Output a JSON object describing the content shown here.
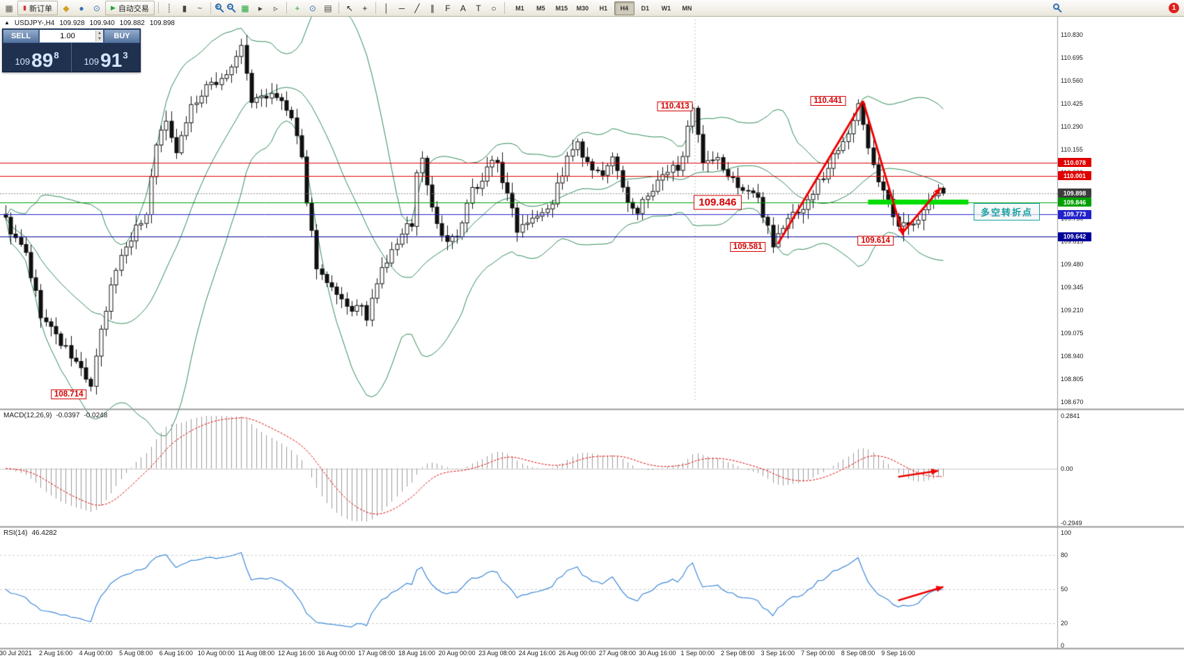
{
  "toolbar": {
    "new_order": "新订单",
    "auto_trading": "自动交易",
    "notification_count": "1",
    "timeframes": [
      "M1",
      "M5",
      "M15",
      "M30",
      "H1",
      "H4",
      "D1",
      "W1",
      "MN"
    ],
    "active_timeframe": "H4",
    "items": [
      {
        "t": "icon",
        "name": "new-chart-icon",
        "g": "▦",
        "c": "#5a5a5a"
      },
      {
        "t": "btn",
        "name": "new-order-button",
        "g": "▮",
        "gc": "#cc3333",
        "label_key": "new_order"
      },
      {
        "t": "icon",
        "name": "diamond-icon",
        "g": "◆",
        "c": "#d0a020"
      },
      {
        "t": "icon",
        "name": "profiles-icon",
        "g": "●",
        "c": "#3b6fb5"
      },
      {
        "t": "icon",
        "name": "history-center-icon",
        "g": "⊙",
        "c": "#3b6fb5"
      },
      {
        "t": "btn",
        "name": "auto-trading-button",
        "g": "▶",
        "gc": "#1fa53a",
        "label_key": "auto_trading"
      },
      {
        "t": "sep"
      },
      {
        "t": "icon",
        "name": "bar-chart-icon",
        "g": "┊",
        "c": "#444"
      },
      {
        "t": "icon",
        "name": "candlestick-chart-icon",
        "g": "▮",
        "c": "#444"
      },
      {
        "t": "icon",
        "name": "line-chart-icon",
        "g": "~",
        "c": "#444"
      },
      {
        "t": "sep"
      },
      {
        "t": "lens",
        "name": "zoom-in-icon",
        "sign": "+"
      },
      {
        "t": "lens",
        "name": "zoom-out-icon",
        "sign": "−"
      },
      {
        "t": "icon",
        "name": "grid-icon",
        "g": "▦",
        "c": "#1fa53a"
      },
      {
        "t": "icon",
        "name": "auto-scroll-icon",
        "g": "▸",
        "c": "#444"
      },
      {
        "t": "icon",
        "name": "chart-shift-icon",
        "g": "▹",
        "c": "#444"
      },
      {
        "t": "sep"
      },
      {
        "t": "icon",
        "name": "indicators-icon",
        "g": "+",
        "c": "#1fa53a"
      },
      {
        "t": "icon",
        "name": "periods-icon",
        "g": "⊙",
        "c": "#3b6fb5"
      },
      {
        "t": "icon",
        "name": "templates-icon",
        "g": "▤",
        "c": "#444"
      },
      {
        "t": "sep"
      },
      {
        "t": "icon",
        "name": "cursor-icon",
        "g": "↖",
        "c": "#222"
      },
      {
        "t": "icon",
        "name": "crosshair-icon",
        "g": "+",
        "c": "#222"
      },
      {
        "t": "sep"
      },
      {
        "t": "icon",
        "name": "vertical-line-icon",
        "g": "│",
        "c": "#222"
      },
      {
        "t": "icon",
        "name": "horizontal-line-icon",
        "g": "─",
        "c": "#222"
      },
      {
        "t": "icon",
        "name": "trendline-icon",
        "g": "╱",
        "c": "#222"
      },
      {
        "t": "icon",
        "name": "channel-icon",
        "g": "∥",
        "c": "#222"
      },
      {
        "t": "icon",
        "name": "fibonacci-icon",
        "g": "F",
        "c": "#222"
      },
      {
        "t": "icon",
        "name": "text-icon",
        "g": "A",
        "c": "#222"
      },
      {
        "t": "icon",
        "name": "label-icon",
        "g": "T",
        "c": "#222"
      },
      {
        "t": "icon",
        "name": "shapes-icon",
        "g": "○",
        "c": "#222"
      },
      {
        "t": "sep"
      },
      {
        "t": "tf"
      },
      {
        "t": "spacer"
      },
      {
        "t": "lens",
        "name": "search-icon",
        "sign": "",
        "cls": "srch"
      },
      {
        "t": "badge",
        "name": "notification-badge",
        "count_key": "notification_count"
      }
    ]
  },
  "symbol_info": {
    "marker": "▲",
    "symbol": "USDJPY-,H4",
    "open": "109.928",
    "high": "109.940",
    "low": "109.882",
    "close": "109.898"
  },
  "trade_panel": {
    "sell_label": "SELL",
    "buy_label": "BUY",
    "volume": "1.00",
    "sell": {
      "prefix": "109",
      "big": "89",
      "sup": "8"
    },
    "buy": {
      "prefix": "109",
      "big": "91",
      "sup": "3"
    }
  },
  "price_axis": {
    "labels": [
      "110.830",
      "110.695",
      "110.560",
      "110.425",
      "110.290",
      "110.155",
      "110.020",
      "109.885",
      "109.750",
      "109.615",
      "109.480",
      "109.345",
      "109.210",
      "109.075",
      "108.940",
      "108.805",
      "108.670"
    ],
    "tags": [
      {
        "text": "110.078",
        "color": "#e00000"
      },
      {
        "text": "110.001",
        "color": "#e00000"
      },
      {
        "text": "109.898",
        "color": "#3c3c3c"
      },
      {
        "text": "109.846",
        "color": "#00a000"
      },
      {
        "text": "109.773",
        "color": "#2222cc"
      },
      {
        "text": "109.642",
        "color": "#000099"
      }
    ]
  },
  "macd": {
    "title": "MACD(12,26,9)",
    "main_value": "-0.0397",
    "signal_value": "-0.0248",
    "axis": [
      "0.2841",
      "0.00",
      "-0.2949"
    ]
  },
  "rsi": {
    "title": "RSI(14)",
    "value": "46.4282",
    "axis": [
      "100",
      "80",
      "50",
      "20",
      "0"
    ]
  },
  "time_axis": [
    "30 Jul 2021",
    "2 Aug 16:00",
    "4 Aug 00:00",
    "5 Aug 08:00",
    "6 Aug 16:00",
    "10 Aug 00:00",
    "11 Aug 08:00",
    "12 Aug 16:00",
    "16 Aug 00:00",
    "17 Aug 08:00",
    "18 Aug 16:00",
    "20 Aug 00:00",
    "23 Aug 08:00",
    "24 Aug 16:00",
    "26 Aug 00:00",
    "27 Aug 08:00",
    "30 Aug 16:00",
    "1 Sep 00:00",
    "2 Sep 08:00",
    "3 Sep 16:00",
    "7 Sep 00:00",
    "8 Sep 08:00",
    "9 Sep 16:00"
  ],
  "annotations": {
    "labels": [
      {
        "text": "108.714",
        "bar": 12.6,
        "price": 108.716
      },
      {
        "text": "110.413",
        "bar": 133.5,
        "price": 110.41
      },
      {
        "text": "110.441",
        "bar": 164,
        "price": 110.44
      },
      {
        "text": "109.846",
        "bar": 142,
        "price": 109.845,
        "big": true
      },
      {
        "text": "109.581",
        "bar": 148,
        "price": 109.581
      },
      {
        "text": "109.614",
        "bar": 173.5,
        "price": 109.62
      }
    ],
    "turning_point": {
      "text": "多空转折点",
      "price": 109.79
    },
    "support_band": {
      "price": 109.846,
      "from_bar": 172,
      "to_bar": 192,
      "color": "#00dd00"
    },
    "arrows": [
      {
        "panel": "main",
        "pts": [
          [
            154,
            109.6
          ],
          [
            171,
            110.44
          ]
        ],
        "head": false
      },
      {
        "panel": "main",
        "pts": [
          [
            171,
            110.44
          ],
          [
            179,
            109.65
          ]
        ],
        "head": true
      },
      {
        "panel": "main",
        "pts": [
          [
            179,
            109.67
          ],
          [
            186.5,
            109.93
          ]
        ],
        "head": true
      },
      {
        "panel": "macd",
        "pts": [
          [
            178,
            -0.045
          ],
          [
            186,
            -0.012
          ]
        ],
        "head": true
      },
      {
        "panel": "rsi",
        "pts": [
          [
            178,
            40
          ],
          [
            187,
            52
          ]
        ],
        "head": true
      }
    ]
  },
  "chart_data": {
    "type": "candlestick",
    "symbol": "USDJPY-",
    "timeframe": "H4",
    "bars": 188,
    "price_range": [
      108.67,
      110.83
    ],
    "ohlc_current": {
      "open": 109.928,
      "high": 109.94,
      "low": 109.882,
      "close": 109.898
    },
    "levels": [
      {
        "price": 110.078,
        "color": "#e00000"
      },
      {
        "price": 110.001,
        "color": "#e00000"
      },
      {
        "price": 109.846,
        "color": "#00a000"
      },
      {
        "price": 109.773,
        "color": "#2222cc"
      },
      {
        "price": 109.642,
        "color": "#000099"
      }
    ],
    "key_points": [
      {
        "label": "swing-low",
        "price": 108.714
      },
      {
        "label": "swing-high",
        "price": 110.413
      },
      {
        "label": "swing-low",
        "price": 109.581
      },
      {
        "label": "swing-high",
        "price": 110.441
      },
      {
        "label": "swing-low",
        "price": 109.614
      },
      {
        "label": "support-turning-point",
        "price": 109.846
      }
    ],
    "waypoints": [
      [
        0,
        109.8
      ],
      [
        3,
        109.62
      ],
      [
        5,
        109.52
      ],
      [
        8,
        109.18
      ],
      [
        13,
        108.97
      ],
      [
        16,
        108.85
      ],
      [
        18,
        108.76
      ],
      [
        20,
        109.05
      ],
      [
        23,
        109.45
      ],
      [
        26,
        109.66
      ],
      [
        29,
        109.78
      ],
      [
        31,
        110.22
      ],
      [
        33,
        110.3
      ],
      [
        35,
        110.18
      ],
      [
        38,
        110.42
      ],
      [
        41,
        110.5
      ],
      [
        44,
        110.58
      ],
      [
        47,
        110.68
      ],
      [
        48,
        110.75
      ],
      [
        50,
        110.42
      ],
      [
        53,
        110.48
      ],
      [
        56,
        110.42
      ],
      [
        58,
        110.32
      ],
      [
        60,
        110.05
      ],
      [
        61,
        109.85
      ],
      [
        63,
        109.48
      ],
      [
        66,
        109.3
      ],
      [
        69,
        109.18
      ],
      [
        71,
        109.22
      ],
      [
        73,
        109.16
      ],
      [
        76,
        109.42
      ],
      [
        79,
        109.6
      ],
      [
        82,
        109.72
      ],
      [
        83,
        110.02
      ],
      [
        84,
        110.1
      ],
      [
        86,
        109.82
      ],
      [
        88,
        109.66
      ],
      [
        91,
        109.62
      ],
      [
        94,
        109.88
      ],
      [
        97,
        110.06
      ],
      [
        99,
        110.1
      ],
      [
        101,
        109.88
      ],
      [
        103,
        109.7
      ],
      [
        106,
        109.8
      ],
      [
        110,
        109.88
      ],
      [
        113,
        110.1
      ],
      [
        115,
        110.16
      ],
      [
        117,
        110.04
      ],
      [
        120,
        109.95
      ],
      [
        122,
        110.12
      ],
      [
        124,
        109.88
      ],
      [
        127,
        109.8
      ],
      [
        131,
        109.95
      ],
      [
        135,
        110.05
      ],
      [
        137,
        110.28
      ],
      [
        138,
        110.36
      ],
      [
        140,
        110.02
      ],
      [
        143,
        110.05
      ],
      [
        146,
        109.96
      ],
      [
        150,
        109.9
      ],
      [
        153,
        109.72
      ],
      [
        154,
        109.62
      ],
      [
        157,
        109.74
      ],
      [
        161,
        109.86
      ],
      [
        165,
        110.05
      ],
      [
        168,
        110.25
      ],
      [
        171,
        110.4
      ],
      [
        174,
        110.08
      ],
      [
        177,
        109.82
      ],
      [
        179,
        109.66
      ],
      [
        182,
        109.76
      ],
      [
        185,
        109.84
      ],
      [
        187,
        109.9
      ]
    ],
    "pins": {
      "18": {
        "l": 108.714
      },
      "48": {
        "h": 110.83
      },
      "138": {
        "h": 110.413
      },
      "154": {
        "l": 109.581
      },
      "171": {
        "h": 110.441
      },
      "179": {
        "l": 109.614
      },
      "187": {
        "o": 109.928,
        "h": 109.94,
        "l": 109.882,
        "c": 109.898
      }
    },
    "indicators": {
      "bollinger": {
        "period": 20,
        "deviation": 2
      },
      "macd": {
        "fast": 12,
        "slow": 26,
        "signal": 9,
        "value": -0.0397,
        "signal_value": -0.0248
      },
      "rsi": {
        "period": 14,
        "value": 46.4282
      }
    }
  }
}
